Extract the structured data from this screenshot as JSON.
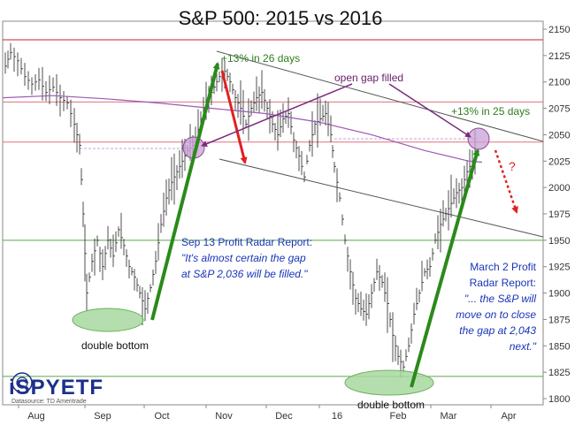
{
  "chart_data": {
    "type": "ohlc",
    "title": "S&P 500: 2015 vs 2016",
    "ylim": [
      1795,
      2160
    ],
    "y_ticks": [
      1800,
      1825,
      1850,
      1875,
      1900,
      1925,
      1950,
      1975,
      2000,
      2025,
      2050,
      2075,
      2100,
      2125,
      2150
    ],
    "x_ticks": [
      "Aug",
      "Sep",
      "Oct",
      "Nov",
      "Dec",
      "16",
      "Feb",
      "Mar",
      "Apr"
    ],
    "y_axis_position": "right",
    "grid": false,
    "horizontal_lines": [
      {
        "y": 2140,
        "color": "#c0202a"
      },
      {
        "y": 2081,
        "color": "#e07080"
      },
      {
        "y": 2043,
        "color": "#e07080"
      },
      {
        "y": 1950,
        "color": "#5aa84a"
      },
      {
        "y": 1821,
        "color": "#5aa84a"
      }
    ],
    "moving_average_color": "#9b59b6",
    "annotations": {
      "gain_2015": "+13% in 26 days",
      "gap_filled": "open gap filled",
      "gain_2016": "+13% in 25 days",
      "question": "?",
      "bottom_2015": "double bottom",
      "bottom_2016": "double bottom",
      "sep_line1": "Sep 13 Profit Radar Report:",
      "sep_line2": "\"It's almost certain the gap",
      "sep_line3": "at S&P 2,036 will be filled.\"",
      "mar_line1": "March 2 Profit",
      "mar_line2": "Radar Report:",
      "mar_line3": "\"... the S&P will",
      "mar_line4": "move on to close",
      "mar_line5": "the gap at 2,043",
      "mar_line6": "next.\""
    },
    "logo": {
      "main": "iSPYETF",
      "sub": "Datasource: TD Ameritrade"
    },
    "colors": {
      "up_arrow": "#2a8a1a",
      "down_arrow": "#e02020",
      "gap_arrow": "#7a2a7a",
      "channel": "#555555",
      "ellipse_fill": "#a8d8a0",
      "gap_circle": "#c9a0d6"
    }
  }
}
